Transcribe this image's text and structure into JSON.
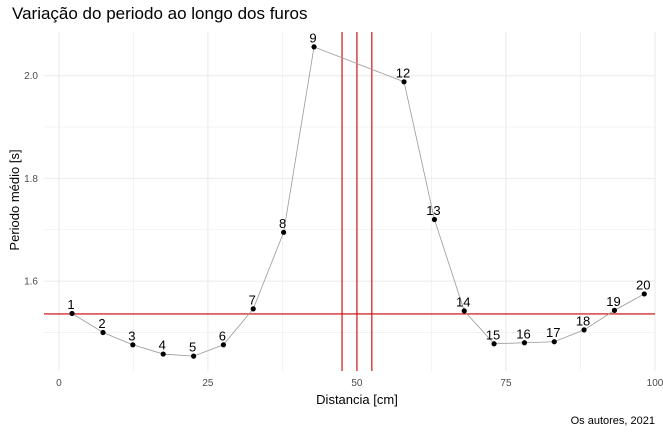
{
  "chart_data": {
    "type": "line",
    "title": "Variação do periodo ao longo dos furos",
    "caption": "Os autores, 2021",
    "xlabel": "Distancia [cm]",
    "ylabel": "Periodo médio [s]",
    "xlim": [
      -2.5,
      100
    ],
    "ylim": [
      1.425,
      2.085
    ],
    "x_ticks": [
      0,
      25,
      50,
      75,
      100
    ],
    "y_ticks": [
      1.6,
      1.8,
      2.0
    ],
    "grid": true,
    "colors": {
      "line": "#999999",
      "point": "#000000",
      "reference": "#cc0000",
      "grid": "#ebebeb"
    },
    "points": [
      {
        "label": "1",
        "x": 2.2,
        "y": 1.537
      },
      {
        "label": "2",
        "x": 7.4,
        "y": 1.5
      },
      {
        "label": "3",
        "x": 12.4,
        "y": 1.476
      },
      {
        "label": "4",
        "x": 17.5,
        "y": 1.458
      },
      {
        "label": "5",
        "x": 22.6,
        "y": 1.454
      },
      {
        "label": "6",
        "x": 27.6,
        "y": 1.476
      },
      {
        "label": "7",
        "x": 32.6,
        "y": 1.546
      },
      {
        "label": "8",
        "x": 37.7,
        "y": 1.695
      },
      {
        "label": "9",
        "x": 42.8,
        "y": 2.056
      },
      {
        "label": "12",
        "x": 57.9,
        "y": 1.988
      },
      {
        "label": "13",
        "x": 63.0,
        "y": 1.72
      },
      {
        "label": "14",
        "x": 68.0,
        "y": 1.542
      },
      {
        "label": "15",
        "x": 73.0,
        "y": 1.478
      },
      {
        "label": "16",
        "x": 78.1,
        "y": 1.48
      },
      {
        "label": "17",
        "x": 83.1,
        "y": 1.482
      },
      {
        "label": "18",
        "x": 88.1,
        "y": 1.505
      },
      {
        "label": "19",
        "x": 93.2,
        "y": 1.543
      },
      {
        "label": "20",
        "x": 98.2,
        "y": 1.575
      }
    ],
    "reference_h": 1.536,
    "reference_v": [
      47.5,
      50.0,
      52.5
    ]
  }
}
